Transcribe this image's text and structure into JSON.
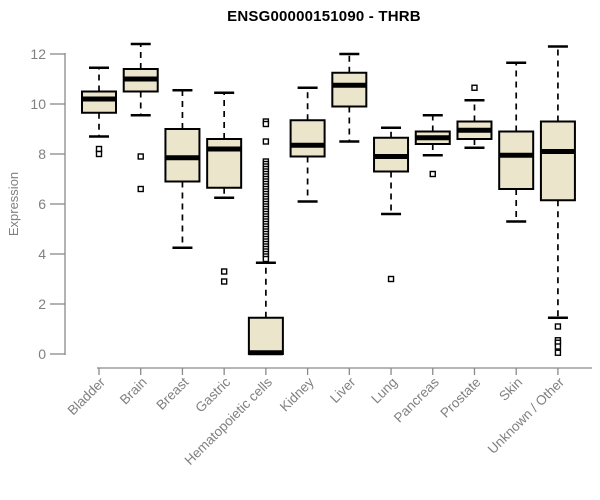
{
  "chart_data": {
    "type": "boxplot",
    "title": "ENSG00000151090 - THRB",
    "xlabel": "",
    "ylabel": "Expression",
    "ylim": [
      0,
      12.5
    ],
    "yticks": [
      0,
      2,
      4,
      6,
      8,
      10,
      12
    ],
    "grid": false,
    "legend": false,
    "categories": [
      "Bladder",
      "Brain",
      "Breast",
      "Gastric",
      "Hematopoietic cells",
      "Kidney",
      "Liver",
      "Lung",
      "Pancreas",
      "Prostate",
      "Skin",
      "Unknown / Other"
    ],
    "series": [
      {
        "name": "Bladder",
        "whisker_low": 8.7,
        "q1": 9.65,
        "median": 10.2,
        "q3": 10.5,
        "whisker_high": 11.45,
        "outliers": [
          8.2,
          8.0
        ]
      },
      {
        "name": "Brain",
        "whisker_low": 9.55,
        "q1": 10.5,
        "median": 11.0,
        "q3": 11.4,
        "whisker_high": 12.4,
        "outliers": [
          7.9,
          6.6
        ]
      },
      {
        "name": "Breast",
        "whisker_low": 4.25,
        "q1": 6.9,
        "median": 7.85,
        "q3": 9.0,
        "whisker_high": 10.55,
        "outliers": []
      },
      {
        "name": "Gastric",
        "whisker_low": 6.25,
        "q1": 6.65,
        "median": 8.2,
        "q3": 8.6,
        "whisker_high": 10.45,
        "outliers": [
          3.3,
          2.9
        ]
      },
      {
        "name": "Hematopoietic cells",
        "whisker_low": 0,
        "q1": 0,
        "median": 0.05,
        "q3": 1.45,
        "whisker_high": 3.65,
        "outliers": [
          9.3,
          9.2,
          8.5,
          7.7,
          7.6,
          7.5,
          7.4,
          7.3,
          7.2,
          7.1,
          7.0,
          6.9,
          6.8,
          6.7,
          6.6,
          6.5,
          6.4,
          6.3,
          6.2,
          6.1,
          6.0,
          5.9,
          5.8,
          5.7,
          5.6,
          5.5,
          5.4,
          5.3,
          5.2,
          5.1,
          5.0,
          4.9,
          4.8,
          4.7,
          4.6,
          4.5,
          4.4,
          4.3,
          4.2,
          4.1,
          4.0,
          3.9,
          3.8
        ]
      },
      {
        "name": "Kidney",
        "whisker_low": 6.1,
        "q1": 7.9,
        "median": 8.35,
        "q3": 9.35,
        "whisker_high": 10.65,
        "outliers": []
      },
      {
        "name": "Liver",
        "whisker_low": 8.5,
        "q1": 9.9,
        "median": 10.75,
        "q3": 11.25,
        "whisker_high": 12.0,
        "outliers": []
      },
      {
        "name": "Lung",
        "whisker_low": 5.6,
        "q1": 7.3,
        "median": 7.9,
        "q3": 8.65,
        "whisker_high": 9.05,
        "outliers": [
          3.0
        ]
      },
      {
        "name": "Pancreas",
        "whisker_low": 7.95,
        "q1": 8.4,
        "median": 8.65,
        "q3": 8.9,
        "whisker_high": 9.55,
        "outliers": [
          7.2
        ]
      },
      {
        "name": "Prostate",
        "whisker_low": 8.25,
        "q1": 8.6,
        "median": 8.95,
        "q3": 9.3,
        "whisker_high": 10.15,
        "outliers": [
          10.65
        ]
      },
      {
        "name": "Skin",
        "whisker_low": 5.3,
        "q1": 6.6,
        "median": 7.95,
        "q3": 8.9,
        "whisker_high": 11.65,
        "outliers": []
      },
      {
        "name": "Unknown / Other",
        "whisker_low": 1.45,
        "q1": 6.15,
        "median": 8.1,
        "q3": 9.3,
        "whisker_high": 12.3,
        "outliers": [
          1.1,
          0.55,
          0.45,
          0.3,
          0.05
        ]
      }
    ]
  },
  "colors": {
    "background": "#FFFFFF",
    "box_fill": "#EBE6CB",
    "box_border": "#000000",
    "median": "#000000",
    "whisker": "#000000",
    "outlier_fill": "#FFFFFF",
    "axis": "#8A8A8A",
    "tick_label": "#808080",
    "title": "#000000"
  }
}
